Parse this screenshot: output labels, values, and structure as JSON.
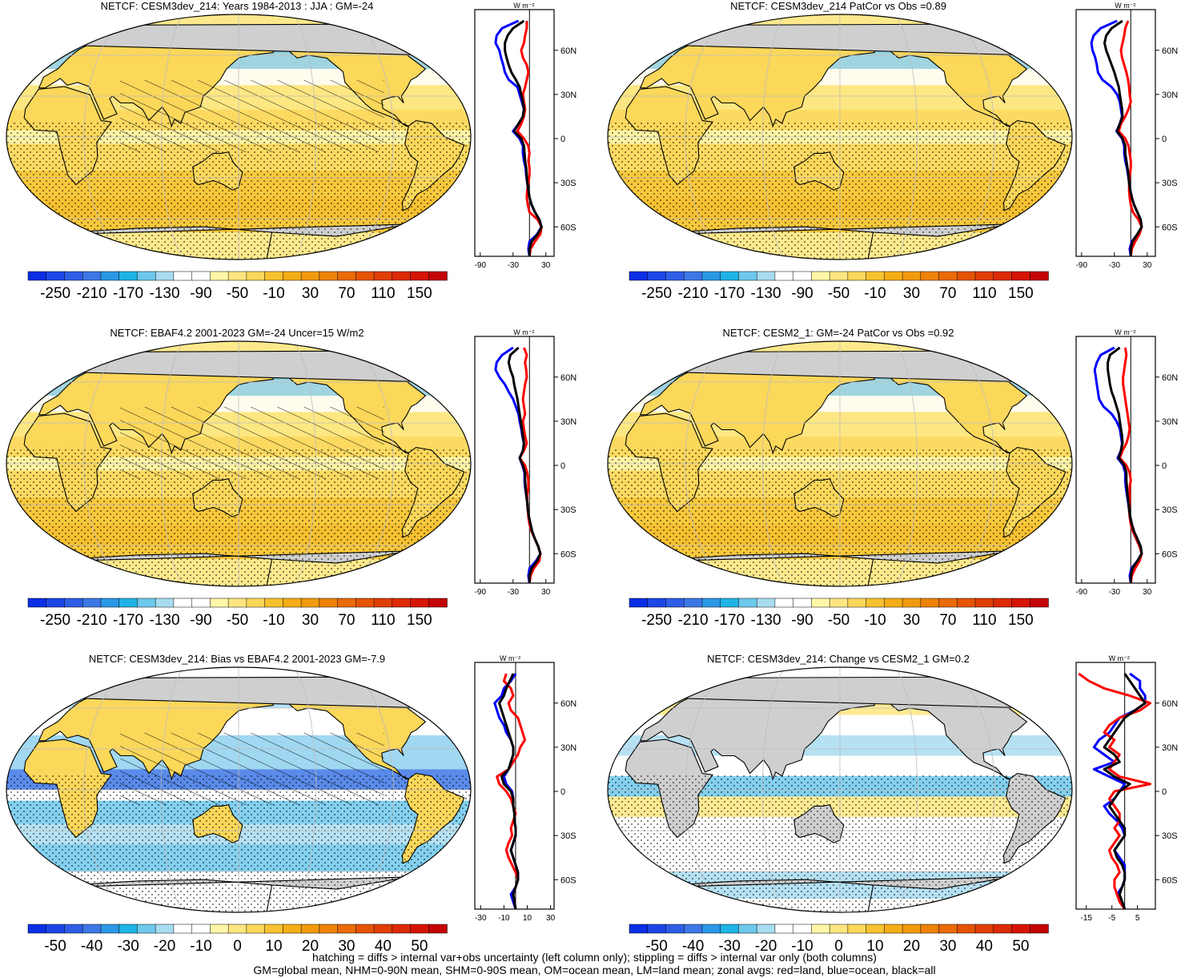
{
  "colors": {
    "land": "#cfcfcf",
    "ocean_base": "#fff2a6",
    "red_line": "#ff0000",
    "blue_line": "#0000ff",
    "black_line": "#000000"
  },
  "scales": {
    "main": {
      "labels": [
        "-250",
        "-210",
        "-170",
        "-130",
        "-90",
        "-50",
        "-10",
        "30",
        "70",
        "110",
        "150"
      ],
      "colors": [
        "#0a2ee6",
        "#1c46e6",
        "#2e5de6",
        "#3d77e6",
        "#2a98e6",
        "#1fb3e6",
        "#6dc8ec",
        "#a8dcf1",
        "#ffffff",
        "#ffffff",
        "#fff6a8",
        "#fde680",
        "#fbd75a",
        "#f7c22e",
        "#f5ae16",
        "#f29a0c",
        "#ee8208",
        "#e96a06",
        "#e55304",
        "#e03e04",
        "#dc2a04",
        "#d61404",
        "#c40404"
      ]
    },
    "diff": {
      "labels": [
        "-50",
        "-40",
        "-30",
        "-20",
        "-10",
        "0",
        "10",
        "20",
        "30",
        "40",
        "50"
      ],
      "colors": [
        "#0a2ee6",
        "#1c46e6",
        "#2e5de6",
        "#3d77e6",
        "#2a98e6",
        "#1fb3e6",
        "#6dc8ec",
        "#a8dcf1",
        "#ffffff",
        "#ffffff",
        "#fff6a8",
        "#fde680",
        "#fbd75a",
        "#f7c22e",
        "#f5ae16",
        "#f29a0c",
        "#ee8208",
        "#e96a06",
        "#e55304",
        "#e03e04",
        "#dc2a04",
        "#d61404",
        "#c40404"
      ]
    }
  },
  "lat_ticks": [
    "60N",
    "30N",
    "0",
    "30S",
    "60S"
  ],
  "axis_unit": "W m⁻²",
  "panels": [
    {
      "id": "p1",
      "title": "NETCF: CESM3dev_214: Years 1984-2013 : JJA : GM=-24",
      "xticks": [
        "-90",
        "-30",
        "30"
      ],
      "scale": "main",
      "hatch": true,
      "profile": {
        "lat": [
          80,
          75,
          70,
          65,
          60,
          55,
          50,
          45,
          40,
          35,
          30,
          25,
          20,
          15,
          10,
          5,
          0,
          -5,
          -10,
          -15,
          -20,
          -25,
          -30,
          -35,
          -40,
          -45,
          -50,
          -55,
          -60,
          -65,
          -70,
          -75,
          -80
        ],
        "all": [
          -10,
          -30,
          -40,
          -45,
          -45,
          -42,
          -38,
          -33,
          -25,
          -18,
          -15,
          -12,
          -10,
          -12,
          -20,
          -28,
          -15,
          -10,
          -9,
          -8,
          -6,
          -5,
          -4,
          -2,
          0,
          4,
          10,
          18,
          22,
          15,
          4,
          0,
          0
        ],
        "land": [
          -5,
          -5,
          -8,
          -10,
          -15,
          -12,
          -5,
          -2,
          -5,
          -8,
          -12,
          -10,
          -8,
          -10,
          -15,
          -22,
          -10,
          -2,
          0,
          -2,
          0,
          0,
          -2,
          -4,
          -5,
          -3,
          0,
          15,
          22,
          20,
          10,
          2,
          0
        ],
        "ocean": [
          -20,
          -50,
          -60,
          -62,
          -55,
          -52,
          -48,
          -45,
          -38,
          -22,
          -18,
          -14,
          -10,
          -12,
          -20,
          -30,
          -18,
          -12,
          -12,
          -10,
          -7,
          -6,
          -4,
          -2,
          0,
          4,
          10,
          18,
          22,
          14,
          0,
          -2,
          0
        ]
      },
      "pxlim": [
        -100,
        45
      ]
    },
    {
      "id": "p2",
      "title": "NETCF: CESM3dev_214 PatCor vs Obs =0.89",
      "xticks": [
        "-90",
        "-30",
        "30"
      ],
      "scale": "main",
      "hatch": false,
      "profile": {
        "lat": [
          80,
          75,
          70,
          65,
          60,
          55,
          50,
          45,
          40,
          35,
          30,
          25,
          20,
          15,
          10,
          5,
          0,
          -5,
          -10,
          -15,
          -20,
          -25,
          -30,
          -35,
          -40,
          -45,
          -50,
          -55,
          -60,
          -65,
          -70,
          -75,
          -80
        ],
        "all": [
          -15,
          -35,
          -45,
          -48,
          -45,
          -40,
          -35,
          -30,
          -26,
          -22,
          -20,
          -18,
          -16,
          -15,
          -20,
          -25,
          -15,
          -10,
          -10,
          -8,
          -6,
          -4,
          -3,
          -1,
          2,
          6,
          12,
          18,
          20,
          12,
          3,
          0,
          0
        ],
        "land": [
          -5,
          -10,
          -12,
          -15,
          -18,
          -16,
          -12,
          -8,
          -5,
          -3,
          -2,
          0,
          -4,
          -10,
          -18,
          -22,
          -10,
          -4,
          -2,
          0,
          0,
          -2,
          -3,
          -3,
          -2,
          0,
          4,
          14,
          20,
          16,
          8,
          2,
          0
        ],
        "ocean": [
          -25,
          -55,
          -68,
          -72,
          -70,
          -65,
          -62,
          -60,
          -52,
          -35,
          -25,
          -20,
          -18,
          -16,
          -20,
          -26,
          -16,
          -12,
          -12,
          -10,
          -7,
          -5,
          -3,
          -1,
          2,
          6,
          12,
          18,
          20,
          12,
          2,
          -2,
          0
        ]
      },
      "pxlim": [
        -100,
        45
      ]
    },
    {
      "id": "p3",
      "title": "NETCF: EBAF4.2 2001-2023 GM=-24 Uncer=15 W/m2",
      "xticks": [
        "-90",
        "-30",
        "30"
      ],
      "scale": "main",
      "hatch": true,
      "profile": {
        "lat": [
          80,
          75,
          70,
          65,
          60,
          55,
          50,
          45,
          40,
          35,
          30,
          25,
          20,
          15,
          10,
          5,
          0,
          -5,
          -10,
          -15,
          -20,
          -25,
          -30,
          -35,
          -40,
          -45,
          -50,
          -55,
          -60,
          -65,
          -70,
          -75,
          -80
        ],
        "all": [
          -20,
          -35,
          -38,
          -35,
          -30,
          -28,
          -25,
          -22,
          -20,
          -18,
          -16,
          -14,
          -12,
          -10,
          -12,
          -18,
          -12,
          -8,
          -8,
          -7,
          -6,
          -4,
          -3,
          -1,
          2,
          5,
          10,
          16,
          20,
          14,
          4,
          0,
          0
        ],
        "land": [
          -10,
          -5,
          -8,
          -6,
          -5,
          -8,
          -10,
          -12,
          -10,
          -8,
          -12,
          -10,
          -8,
          -5,
          -10,
          -18,
          -8,
          -4,
          -2,
          -2,
          -4,
          -4,
          -3,
          -2,
          0,
          4,
          10,
          16,
          20,
          18,
          8,
          2,
          0
        ],
        "ocean": [
          -30,
          -50,
          -60,
          -62,
          -55,
          -45,
          -38,
          -30,
          -25,
          -20,
          -18,
          -15,
          -13,
          -10,
          -12,
          -18,
          -13,
          -9,
          -9,
          -8,
          -6,
          -4,
          -3,
          -1,
          2,
          5,
          10,
          16,
          20,
          12,
          0,
          -2,
          0
        ]
      },
      "pxlim": [
        -100,
        45
      ]
    },
    {
      "id": "p4",
      "title": "NETCF: CESM2_1: GM=-24 PatCor vs Obs =0.92",
      "xticks": [
        "-90",
        "-30",
        "30"
      ],
      "scale": "main",
      "hatch": false,
      "profile": {
        "lat": [
          80,
          75,
          70,
          65,
          60,
          55,
          50,
          45,
          40,
          35,
          30,
          25,
          20,
          15,
          10,
          5,
          0,
          -5,
          -10,
          -15,
          -20,
          -25,
          -30,
          -35,
          -40,
          -45,
          -50,
          -55,
          -60,
          -65,
          -70,
          -75,
          -80
        ],
        "all": [
          -20,
          -38,
          -42,
          -42,
          -40,
          -38,
          -35,
          -30,
          -26,
          -22,
          -20,
          -18,
          -16,
          -15,
          -18,
          -22,
          -12,
          -8,
          -8,
          -7,
          -6,
          -4,
          -3,
          -1,
          2,
          6,
          12,
          18,
          20,
          12,
          3,
          0,
          0
        ],
        "land": [
          -10,
          -8,
          -10,
          -12,
          -14,
          -14,
          -12,
          -10,
          -8,
          -6,
          -4,
          -2,
          -4,
          -8,
          -15,
          -20,
          -8,
          -2,
          0,
          -2,
          -2,
          -2,
          -3,
          -2,
          0,
          4,
          10,
          16,
          20,
          16,
          8,
          2,
          0
        ],
        "ocean": [
          -30,
          -55,
          -62,
          -66,
          -64,
          -62,
          -60,
          -58,
          -50,
          -35,
          -26,
          -20,
          -18,
          -16,
          -18,
          -24,
          -14,
          -10,
          -10,
          -9,
          -7,
          -5,
          -3,
          -1,
          2,
          6,
          12,
          18,
          20,
          12,
          1,
          -2,
          0
        ]
      },
      "pxlim": [
        -100,
        45
      ]
    },
    {
      "id": "p5",
      "title": "NETCF: CESM3dev_214: Bias vs EBAF4.2 2001-2023 GM=-7.9",
      "xticks": [
        "-30",
        "-10",
        "10",
        "30"
      ],
      "scale": "diff",
      "hatch": true,
      "profile": {
        "lat": [
          80,
          75,
          70,
          65,
          60,
          55,
          50,
          45,
          40,
          35,
          30,
          25,
          20,
          15,
          10,
          5,
          0,
          -5,
          -10,
          -15,
          -20,
          -25,
          -30,
          -35,
          -40,
          -45,
          -50,
          -55,
          -60,
          -65,
          -70,
          -75,
          -80
        ],
        "all": [
          -2,
          -5,
          -8,
          -10,
          -14,
          -12,
          -10,
          -8,
          -6,
          -4,
          -2,
          -2,
          -4,
          -6,
          -12,
          -10,
          -4,
          -2,
          -2,
          -1,
          -1,
          0,
          0,
          -2,
          -4,
          -2,
          0,
          2,
          2,
          0,
          -2,
          -1,
          0
        ],
        "land": [
          -8,
          -10,
          -4,
          -2,
          -6,
          -4,
          2,
          4,
          6,
          8,
          4,
          2,
          -2,
          -6,
          -16,
          -14,
          -8,
          -4,
          -2,
          0,
          -2,
          -4,
          -3,
          -6,
          -8,
          -6,
          -3,
          0,
          2,
          0,
          -2,
          -1,
          0
        ],
        "ocean": [
          0,
          -4,
          -10,
          -12,
          -18,
          -16,
          -14,
          -10,
          -8,
          -4,
          -2,
          -2,
          -4,
          -6,
          -10,
          -8,
          -3,
          -2,
          -2,
          -1,
          -1,
          0,
          0,
          -2,
          -4,
          -2,
          0,
          2,
          2,
          0,
          -4,
          -2,
          0
        ]
      },
      "pxlim": [
        -35,
        33
      ]
    },
    {
      "id": "p6",
      "title": "NETCF: CESM3dev_214: Change vs CESM2_1 GM=0.2",
      "xticks": [
        "-15",
        "-5",
        "5"
      ],
      "scale": "diff",
      "hatch": false,
      "profile": {
        "lat": [
          80,
          75,
          70,
          65,
          60,
          55,
          50,
          45,
          40,
          35,
          30,
          25,
          20,
          15,
          10,
          5,
          0,
          -5,
          -10,
          -15,
          -20,
          -25,
          -30,
          -35,
          -40,
          -45,
          -50,
          -55,
          -60,
          -65,
          -70,
          -75,
          -80
        ],
        "all": [
          0,
          2,
          4,
          6,
          8,
          4,
          0,
          -2,
          -4,
          -6,
          -8,
          -4,
          -2,
          -8,
          -4,
          2,
          -2,
          -4,
          -6,
          -4,
          -2,
          0,
          0,
          -2,
          -4,
          -3,
          -1,
          0,
          0,
          -1,
          -2,
          -1,
          0
        ],
        "land": [
          -18,
          -14,
          -8,
          2,
          10,
          6,
          -2,
          -6,
          -8,
          -4,
          -6,
          -2,
          -4,
          -6,
          -2,
          10,
          -4,
          -6,
          -4,
          -2,
          -2,
          -4,
          -2,
          -4,
          -6,
          -5,
          -3,
          -2,
          -4,
          -4,
          -3,
          -2,
          0
        ],
        "ocean": [
          2,
          6,
          6,
          8,
          8,
          4,
          -2,
          -4,
          -6,
          -10,
          -12,
          -8,
          -4,
          -12,
          -6,
          0,
          -2,
          -4,
          -8,
          -6,
          -3,
          -1,
          0,
          -2,
          -4,
          -2,
          0,
          0,
          0,
          -1,
          -3,
          -1,
          0
        ]
      },
      "pxlim": [
        -19,
        12
      ]
    }
  ],
  "footer": {
    "line1": "hatching = diffs > internal var+obs uncertainty (left column only); stippling = diffs > internal var only (both columns)",
    "line2": "GM=global mean, NHM=0-90N mean, SHM=0-90S mean, OM=ocean mean, LM=land mean; zonal avgs: red=land, blue=ocean, black=all"
  }
}
